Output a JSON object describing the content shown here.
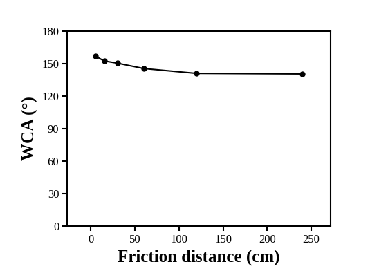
{
  "chart_data": {
    "type": "line",
    "x_label": "Friction distance (cm)",
    "y_label": "WCA (°)",
    "series": [
      {
        "name": "WCA",
        "color": "#000000",
        "marker": "o",
        "line_style": "solid",
        "x": [
          5,
          15,
          30,
          60,
          120,
          240
        ],
        "values": [
          157,
          152.5,
          150.5,
          145.5,
          141,
          140.5
        ]
      }
    ],
    "xlim": [
      -27,
      272
    ],
    "xticks": [
      0,
      50,
      100,
      150,
      200,
      250
    ],
    "ylim": [
      0,
      180
    ],
    "yticks": [
      0,
      30,
      60,
      90,
      120,
      150,
      180
    ],
    "grid": false
  }
}
